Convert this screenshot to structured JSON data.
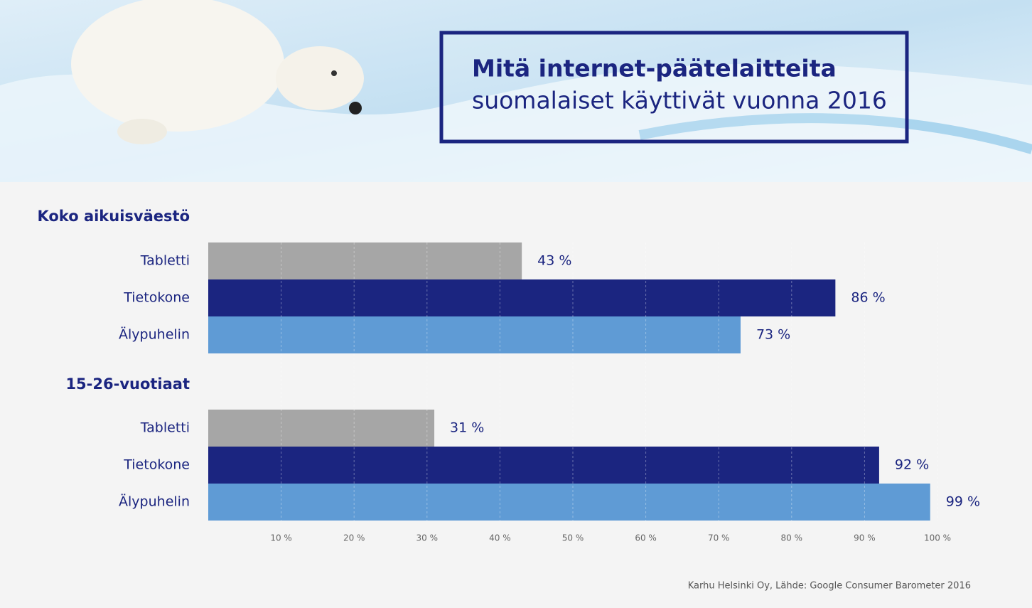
{
  "chart_data": {
    "type": "bar",
    "orientation": "horizontal",
    "title": "Mitä internet-päätelaitteita",
    "subtitle": "suomalaiset käyttivät vuonna 2016",
    "colors": [
      "#a6a6a6",
      "#1b2580",
      "#5f9bd5"
    ],
    "groups": [
      {
        "name": "Koko aikuisväestö",
        "categories": [
          "Tabletti",
          "Tietokone",
          "Älypuhelin"
        ],
        "values": [
          43,
          86,
          73
        ],
        "value_labels": [
          "43 %",
          "86 %",
          "73 %"
        ]
      },
      {
        "name": "15-26-vuotiaat",
        "categories": [
          "Tabletti",
          "Tietokone",
          "Älypuhelin"
        ],
        "values": [
          31,
          92,
          99
        ],
        "value_labels": [
          "31 %",
          "92 %",
          "99 %"
        ]
      }
    ],
    "xlim": [
      0,
      100
    ],
    "xticks": [
      {
        "value": 10,
        "label": "10 %"
      },
      {
        "value": 20,
        "label": "20 %"
      },
      {
        "value": 30,
        "label": "30 %"
      },
      {
        "value": 40,
        "label": "40 %"
      },
      {
        "value": 50,
        "label": "50 %"
      },
      {
        "value": 60,
        "label": "60 %"
      },
      {
        "value": 70,
        "label": "70 %"
      },
      {
        "value": 80,
        "label": "80 %"
      },
      {
        "value": 90,
        "label": "90 %"
      },
      {
        "value": 100,
        "label": "100 %"
      }
    ],
    "grid": true,
    "source": "Karhu Helsinki Oy, Lähde: Google Consumer Barometer 2016"
  }
}
